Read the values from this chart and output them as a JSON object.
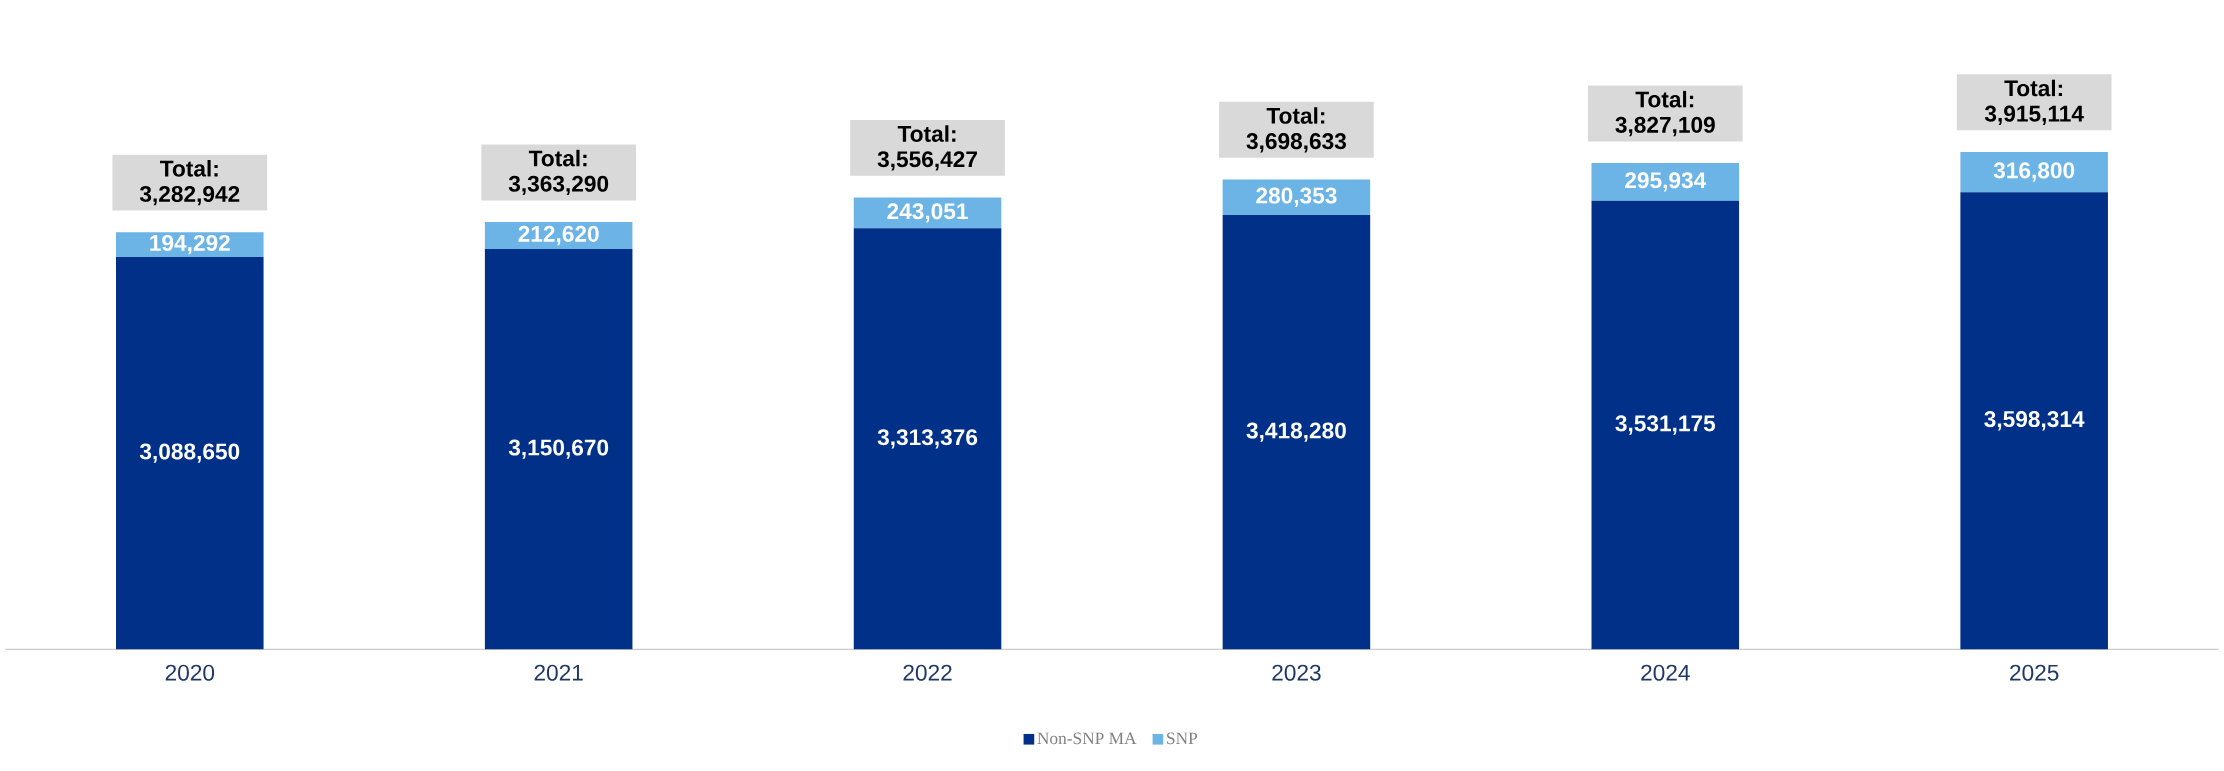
{
  "chart_data": {
    "type": "bar",
    "stacked": true,
    "categories": [
      "2020",
      "2021",
      "2022",
      "2023",
      "2024",
      "2025"
    ],
    "series": [
      {
        "name": "Non-SNP MA",
        "color": "#003087",
        "values": [
          3088650,
          3150670,
          3313376,
          3418280,
          3531175,
          3598314
        ],
        "value_labels": [
          "3,088,650",
          "3,150,670",
          "3,313,376",
          "3,418,280",
          "3,531,175",
          "3,598,314"
        ]
      },
      {
        "name": "SNP",
        "color": "#6CB4E6",
        "values": [
          194292,
          212620,
          243051,
          280353,
          295934,
          316800
        ],
        "value_labels": [
          "194,292",
          "212,620",
          "243,051",
          "280,353",
          "295,934",
          "316,800"
        ]
      }
    ],
    "totals": [
      "Total: 3,282,942",
      "Total: 3,363,290",
      "Total: 3,556,427",
      "Total: 3,698,633",
      "Total: 3,827,109",
      "Total: 3,915,114"
    ],
    "legend": "bottom"
  }
}
